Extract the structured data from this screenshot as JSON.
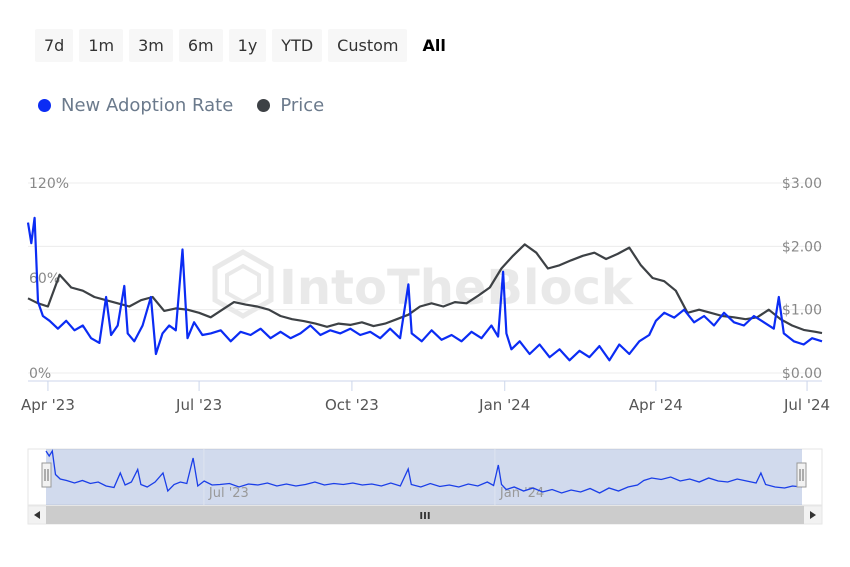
{
  "range_selector": {
    "buttons": [
      "7d",
      "1m",
      "3m",
      "6m",
      "1y",
      "YTD",
      "Custom",
      "All"
    ],
    "active": "All"
  },
  "legend": [
    {
      "name": "New Adoption Rate",
      "color": "#0b2cf4"
    },
    {
      "name": "Price",
      "color": "#3d4145"
    }
  ],
  "watermark": "IntoTheBlock",
  "navigator": {
    "x_labels": [
      "Jul '23",
      "Jan '24"
    ],
    "scroll_label": "III"
  },
  "chart_data": {
    "type": "line",
    "x_axis": {
      "start": "2023-03-20",
      "end": "2024-07-10",
      "tick_labels": [
        "Apr '23",
        "Jul '23",
        "Oct '23",
        "Jan '24",
        "Apr '24",
        "Jul '24"
      ],
      "tick_dates": [
        "2023-04-01",
        "2023-07-01",
        "2023-10-01",
        "2024-01-01",
        "2024-04-01",
        "2024-07-01"
      ]
    },
    "y_left": {
      "range": [
        0,
        120
      ],
      "unit": "%",
      "tick_labels": [
        "0%",
        "60%",
        "120%"
      ],
      "tick_values": [
        0,
        60,
        120
      ]
    },
    "y_right": {
      "range": [
        0,
        3
      ],
      "unit": "$",
      "tick_labels": [
        "$0.00",
        "$1.00",
        "$2.00",
        "$3.00"
      ],
      "tick_values": [
        0,
        1,
        2,
        3
      ]
    },
    "series": [
      {
        "name": "New Adoption Rate",
        "axis": "left",
        "color": "#0b2cf4",
        "points": [
          [
            "2023-03-20",
            95
          ],
          [
            "2023-03-22",
            82
          ],
          [
            "2023-03-24",
            98
          ],
          [
            "2023-03-26",
            45
          ],
          [
            "2023-03-29",
            36
          ],
          [
            "2023-04-02",
            33
          ],
          [
            "2023-04-07",
            28
          ],
          [
            "2023-04-12",
            33
          ],
          [
            "2023-04-17",
            27
          ],
          [
            "2023-04-22",
            30
          ],
          [
            "2023-04-27",
            22
          ],
          [
            "2023-05-02",
            19
          ],
          [
            "2023-05-06",
            48
          ],
          [
            "2023-05-09",
            24
          ],
          [
            "2023-05-13",
            30
          ],
          [
            "2023-05-17",
            55
          ],
          [
            "2023-05-19",
            25
          ],
          [
            "2023-05-23",
            20
          ],
          [
            "2023-05-28",
            30
          ],
          [
            "2023-06-02",
            48
          ],
          [
            "2023-06-05",
            12
          ],
          [
            "2023-06-09",
            25
          ],
          [
            "2023-06-13",
            30
          ],
          [
            "2023-06-17",
            27
          ],
          [
            "2023-06-21",
            78
          ],
          [
            "2023-06-24",
            22
          ],
          [
            "2023-06-28",
            32
          ],
          [
            "2023-07-03",
            24
          ],
          [
            "2023-07-08",
            25
          ],
          [
            "2023-07-14",
            27
          ],
          [
            "2023-07-20",
            20
          ],
          [
            "2023-07-26",
            26
          ],
          [
            "2023-08-01",
            24
          ],
          [
            "2023-08-07",
            28
          ],
          [
            "2023-08-13",
            22
          ],
          [
            "2023-08-19",
            26
          ],
          [
            "2023-08-25",
            22
          ],
          [
            "2023-08-31",
            25
          ],
          [
            "2023-09-06",
            30
          ],
          [
            "2023-09-12",
            24
          ],
          [
            "2023-09-18",
            27
          ],
          [
            "2023-09-24",
            25
          ],
          [
            "2023-09-30",
            28
          ],
          [
            "2023-10-06",
            24
          ],
          [
            "2023-10-12",
            26
          ],
          [
            "2023-10-18",
            22
          ],
          [
            "2023-10-24",
            28
          ],
          [
            "2023-10-30",
            22
          ],
          [
            "2023-11-04",
            56
          ],
          [
            "2023-11-06",
            25
          ],
          [
            "2023-11-12",
            20
          ],
          [
            "2023-11-18",
            27
          ],
          [
            "2023-11-24",
            21
          ],
          [
            "2023-11-30",
            24
          ],
          [
            "2023-12-06",
            20
          ],
          [
            "2023-12-12",
            26
          ],
          [
            "2023-12-18",
            22
          ],
          [
            "2023-12-24",
            30
          ],
          [
            "2023-12-28",
            23
          ],
          [
            "2023-12-31",
            64
          ],
          [
            "2024-01-02",
            25
          ],
          [
            "2024-01-05",
            15
          ],
          [
            "2024-01-10",
            20
          ],
          [
            "2024-01-16",
            12
          ],
          [
            "2024-01-22",
            18
          ],
          [
            "2024-01-28",
            10
          ],
          [
            "2024-02-03",
            15
          ],
          [
            "2024-02-09",
            8
          ],
          [
            "2024-02-15",
            14
          ],
          [
            "2024-02-21",
            10
          ],
          [
            "2024-02-27",
            17
          ],
          [
            "2024-03-04",
            8
          ],
          [
            "2024-03-10",
            18
          ],
          [
            "2024-03-16",
            12
          ],
          [
            "2024-03-22",
            20
          ],
          [
            "2024-03-28",
            24
          ],
          [
            "2024-04-01",
            33
          ],
          [
            "2024-04-06",
            38
          ],
          [
            "2024-04-12",
            35
          ],
          [
            "2024-04-18",
            40
          ],
          [
            "2024-04-24",
            32
          ],
          [
            "2024-04-30",
            36
          ],
          [
            "2024-05-06",
            30
          ],
          [
            "2024-05-12",
            38
          ],
          [
            "2024-05-18",
            32
          ],
          [
            "2024-05-24",
            30
          ],
          [
            "2024-05-30",
            36
          ],
          [
            "2024-06-05",
            32
          ],
          [
            "2024-06-11",
            28
          ],
          [
            "2024-06-14",
            48
          ],
          [
            "2024-06-17",
            25
          ],
          [
            "2024-06-23",
            20
          ],
          [
            "2024-06-29",
            18
          ],
          [
            "2024-07-04",
            22
          ],
          [
            "2024-07-10",
            20
          ]
        ]
      },
      {
        "name": "Price",
        "axis": "right",
        "color": "#3d4145",
        "points": [
          [
            "2023-03-20",
            1.18
          ],
          [
            "2023-03-26",
            1.1
          ],
          [
            "2023-04-01",
            1.05
          ],
          [
            "2023-04-08",
            1.55
          ],
          [
            "2023-04-15",
            1.35
          ],
          [
            "2023-04-22",
            1.3
          ],
          [
            "2023-04-29",
            1.2
          ],
          [
            "2023-05-06",
            1.15
          ],
          [
            "2023-05-13",
            1.1
          ],
          [
            "2023-05-20",
            1.05
          ],
          [
            "2023-05-27",
            1.15
          ],
          [
            "2023-06-03",
            1.2
          ],
          [
            "2023-06-10",
            0.98
          ],
          [
            "2023-06-17",
            1.02
          ],
          [
            "2023-06-24",
            1.0
          ],
          [
            "2023-07-01",
            0.95
          ],
          [
            "2023-07-08",
            0.88
          ],
          [
            "2023-07-15",
            1.0
          ],
          [
            "2023-07-22",
            1.12
          ],
          [
            "2023-07-29",
            1.08
          ],
          [
            "2023-08-05",
            1.05
          ],
          [
            "2023-08-12",
            1.0
          ],
          [
            "2023-08-19",
            0.9
          ],
          [
            "2023-08-26",
            0.85
          ],
          [
            "2023-09-02",
            0.82
          ],
          [
            "2023-09-09",
            0.78
          ],
          [
            "2023-09-16",
            0.73
          ],
          [
            "2023-09-23",
            0.78
          ],
          [
            "2023-09-30",
            0.76
          ],
          [
            "2023-10-07",
            0.8
          ],
          [
            "2023-10-14",
            0.74
          ],
          [
            "2023-10-21",
            0.78
          ],
          [
            "2023-10-28",
            0.85
          ],
          [
            "2023-11-04",
            0.92
          ],
          [
            "2023-11-11",
            1.05
          ],
          [
            "2023-11-18",
            1.1
          ],
          [
            "2023-11-25",
            1.05
          ],
          [
            "2023-12-02",
            1.12
          ],
          [
            "2023-12-09",
            1.1
          ],
          [
            "2023-12-16",
            1.22
          ],
          [
            "2023-12-23",
            1.35
          ],
          [
            "2023-12-30",
            1.65
          ],
          [
            "2024-01-06",
            1.85
          ],
          [
            "2024-01-13",
            2.03
          ],
          [
            "2024-01-20",
            1.9
          ],
          [
            "2024-01-27",
            1.65
          ],
          [
            "2024-02-03",
            1.7
          ],
          [
            "2024-02-10",
            1.78
          ],
          [
            "2024-02-17",
            1.85
          ],
          [
            "2024-02-24",
            1.9
          ],
          [
            "2024-03-02",
            1.8
          ],
          [
            "2024-03-09",
            1.88
          ],
          [
            "2024-03-16",
            1.98
          ],
          [
            "2024-03-23",
            1.7
          ],
          [
            "2024-03-30",
            1.5
          ],
          [
            "2024-04-06",
            1.45
          ],
          [
            "2024-04-13",
            1.3
          ],
          [
            "2024-04-20",
            0.95
          ],
          [
            "2024-04-27",
            1.0
          ],
          [
            "2024-05-04",
            0.95
          ],
          [
            "2024-05-11",
            0.9
          ],
          [
            "2024-05-18",
            0.88
          ],
          [
            "2024-05-25",
            0.85
          ],
          [
            "2024-06-01",
            0.88
          ],
          [
            "2024-06-08",
            1.0
          ],
          [
            "2024-06-15",
            0.85
          ],
          [
            "2024-06-22",
            0.75
          ],
          [
            "2024-06-29",
            0.68
          ],
          [
            "2024-07-06",
            0.65
          ],
          [
            "2024-07-10",
            0.63
          ]
        ]
      }
    ]
  }
}
